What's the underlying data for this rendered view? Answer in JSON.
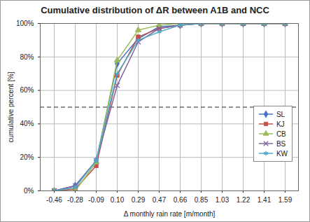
{
  "chart_data": {
    "type": "line",
    "title": "Cumulative distribution of ΔR between A1B and NCC",
    "x_label": "Δ monthly rain rate [m/month]",
    "y_label": "cumulative percent [%]",
    "categories": [
      "-0.46",
      "-0.28",
      "-0.09",
      "0.10",
      "0.29",
      "0.47",
      "0.66",
      "0.85",
      "1.03",
      "1.22",
      "1.41",
      "1.59"
    ],
    "series": [
      {
        "name": "SL",
        "color": "#4472c4",
        "marker": "diamond",
        "values": [
          0,
          3,
          18,
          76,
          91,
          98,
          99,
          100,
          100,
          100,
          100,
          100
        ]
      },
      {
        "name": "KJ",
        "color": "#c0504d",
        "marker": "square",
        "values": [
          0,
          1,
          15,
          69,
          92,
          97,
          99,
          100,
          100,
          100,
          100,
          100
        ]
      },
      {
        "name": "CB",
        "color": "#9bbb59",
        "marker": "triangle",
        "values": [
          0,
          0,
          17,
          78,
          96,
          99,
          100,
          100,
          100,
          100,
          100,
          100
        ]
      },
      {
        "name": "BS",
        "color": "#8064a2",
        "marker": "times",
        "values": [
          0,
          3,
          18,
          63,
          89,
          97,
          99,
          100,
          100,
          100,
          100,
          100
        ]
      },
      {
        "name": "KW",
        "color": "#4bacc6",
        "marker": "asterisk",
        "values": [
          0,
          2,
          18,
          70,
          90,
          95,
          99,
          100,
          100,
          100,
          100,
          100
        ]
      }
    ],
    "reference_y": 50,
    "ylim": [
      0,
      100
    ],
    "yticks": [
      {
        "value": 0,
        "label": "0%"
      },
      {
        "value": 20,
        "label": "20%"
      },
      {
        "value": 40,
        "label": "40%"
      },
      {
        "value": 60,
        "label": "60%"
      },
      {
        "value": 80,
        "label": "80%"
      },
      {
        "value": 100,
        "label": "100%"
      }
    ],
    "grid": true,
    "legend": "right"
  }
}
